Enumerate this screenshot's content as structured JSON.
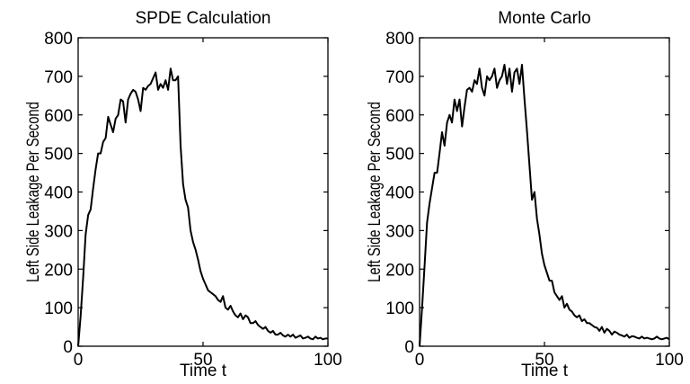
{
  "chart_data": [
    {
      "type": "line",
      "title": "SPDE Calculation",
      "xlabel": "Time t",
      "ylabel": "Left Side Leakage Per Second",
      "xlim": [
        0,
        100
      ],
      "ylim": [
        0,
        800
      ],
      "x_ticks": [
        0,
        50,
        100
      ],
      "y_ticks": [
        0,
        100,
        200,
        300,
        400,
        500,
        600,
        700,
        800
      ],
      "x_tick_labels": [
        "0",
        "50",
        "100"
      ],
      "y_tick_labels": [
        "0",
        "100",
        "200",
        "300",
        "400",
        "500",
        "600",
        "700",
        "800"
      ],
      "grid": false,
      "series": [
        {
          "x": [
            0,
            1,
            2,
            3,
            4,
            5,
            6,
            7,
            8,
            9,
            10,
            11,
            12,
            13,
            14,
            15,
            16,
            17,
            18,
            19,
            20,
            21,
            22,
            23,
            24,
            25,
            26,
            27,
            28,
            29,
            30,
            31,
            32,
            33,
            34,
            35,
            36,
            37,
            38,
            39,
            40,
            41,
            42,
            43,
            44,
            45,
            46,
            47,
            48,
            49,
            50,
            51,
            52,
            53,
            54,
            55,
            56,
            57,
            58,
            59,
            60,
            61,
            62,
            63,
            64,
            65,
            66,
            67,
            68,
            69,
            70,
            71,
            72,
            73,
            74,
            75,
            76,
            77,
            78,
            79,
            80,
            81,
            82,
            83,
            84,
            85,
            86,
            87,
            88,
            89,
            90,
            91,
            92,
            93,
            94,
            95,
            96,
            97,
            98,
            99,
            100
          ],
          "values": [
            0,
            80,
            180,
            290,
            340,
            355,
            410,
            460,
            500,
            500,
            530,
            540,
            595,
            575,
            555,
            590,
            600,
            640,
            635,
            580,
            640,
            655,
            665,
            660,
            640,
            610,
            670,
            665,
            675,
            680,
            695,
            710,
            665,
            680,
            670,
            690,
            665,
            720,
            690,
            690,
            700,
            520,
            420,
            380,
            360,
            300,
            270,
            250,
            225,
            195,
            175,
            160,
            145,
            140,
            135,
            130,
            120,
            115,
            130,
            100,
            95,
            105,
            90,
            80,
            75,
            85,
            70,
            80,
            75,
            60,
            60,
            65,
            55,
            50,
            45,
            50,
            40,
            35,
            40,
            30,
            30,
            35,
            28,
            25,
            30,
            25,
            30,
            22,
            25,
            28,
            20,
            22,
            25,
            20,
            18,
            25,
            20,
            22,
            18,
            20,
            20
          ]
        }
      ]
    },
    {
      "type": "line",
      "title": "Monte Carlo",
      "xlabel": "Time t",
      "ylabel": "Left Side Leakage Per Second",
      "xlim": [
        0,
        100
      ],
      "ylim": [
        0,
        800
      ],
      "x_ticks": [
        0,
        50,
        100
      ],
      "y_ticks": [
        0,
        100,
        200,
        300,
        400,
        500,
        600,
        700,
        800
      ],
      "x_tick_labels": [
        "0",
        "50",
        "100"
      ],
      "y_tick_labels": [
        "0",
        "100",
        "200",
        "300",
        "400",
        "500",
        "600",
        "700",
        "800"
      ],
      "grid": false,
      "series": [
        {
          "x": [
            0,
            1,
            2,
            3,
            4,
            5,
            6,
            7,
            8,
            9,
            10,
            11,
            12,
            13,
            14,
            15,
            16,
            17,
            18,
            19,
            20,
            21,
            22,
            23,
            24,
            25,
            26,
            27,
            28,
            29,
            30,
            31,
            32,
            33,
            34,
            35,
            36,
            37,
            38,
            39,
            40,
            41,
            42,
            43,
            44,
            45,
            46,
            47,
            48,
            49,
            50,
            51,
            52,
            53,
            54,
            55,
            56,
            57,
            58,
            59,
            60,
            61,
            62,
            63,
            64,
            65,
            66,
            67,
            68,
            69,
            70,
            71,
            72,
            73,
            74,
            75,
            76,
            77,
            78,
            79,
            80,
            81,
            82,
            83,
            84,
            85,
            86,
            87,
            88,
            89,
            90,
            91,
            92,
            93,
            94,
            95,
            96,
            97,
            98,
            99,
            100
          ],
          "values": [
            0,
            100,
            210,
            320,
            370,
            410,
            450,
            450,
            500,
            555,
            520,
            580,
            600,
            580,
            640,
            610,
            640,
            570,
            620,
            665,
            670,
            660,
            690,
            680,
            720,
            670,
            650,
            700,
            690,
            700,
            720,
            670,
            690,
            700,
            730,
            680,
            720,
            660,
            710,
            720,
            680,
            730,
            640,
            560,
            470,
            380,
            400,
            330,
            290,
            240,
            210,
            190,
            170,
            170,
            140,
            130,
            120,
            130,
            100,
            110,
            95,
            90,
            80,
            75,
            80,
            65,
            70,
            60,
            60,
            55,
            50,
            48,
            40,
            50,
            35,
            45,
            40,
            30,
            38,
            35,
            30,
            28,
            25,
            30,
            22,
            26,
            25,
            22,
            20,
            25,
            20,
            22,
            20,
            18,
            20,
            25,
            20,
            18,
            20,
            22,
            18
          ]
        }
      ]
    }
  ]
}
